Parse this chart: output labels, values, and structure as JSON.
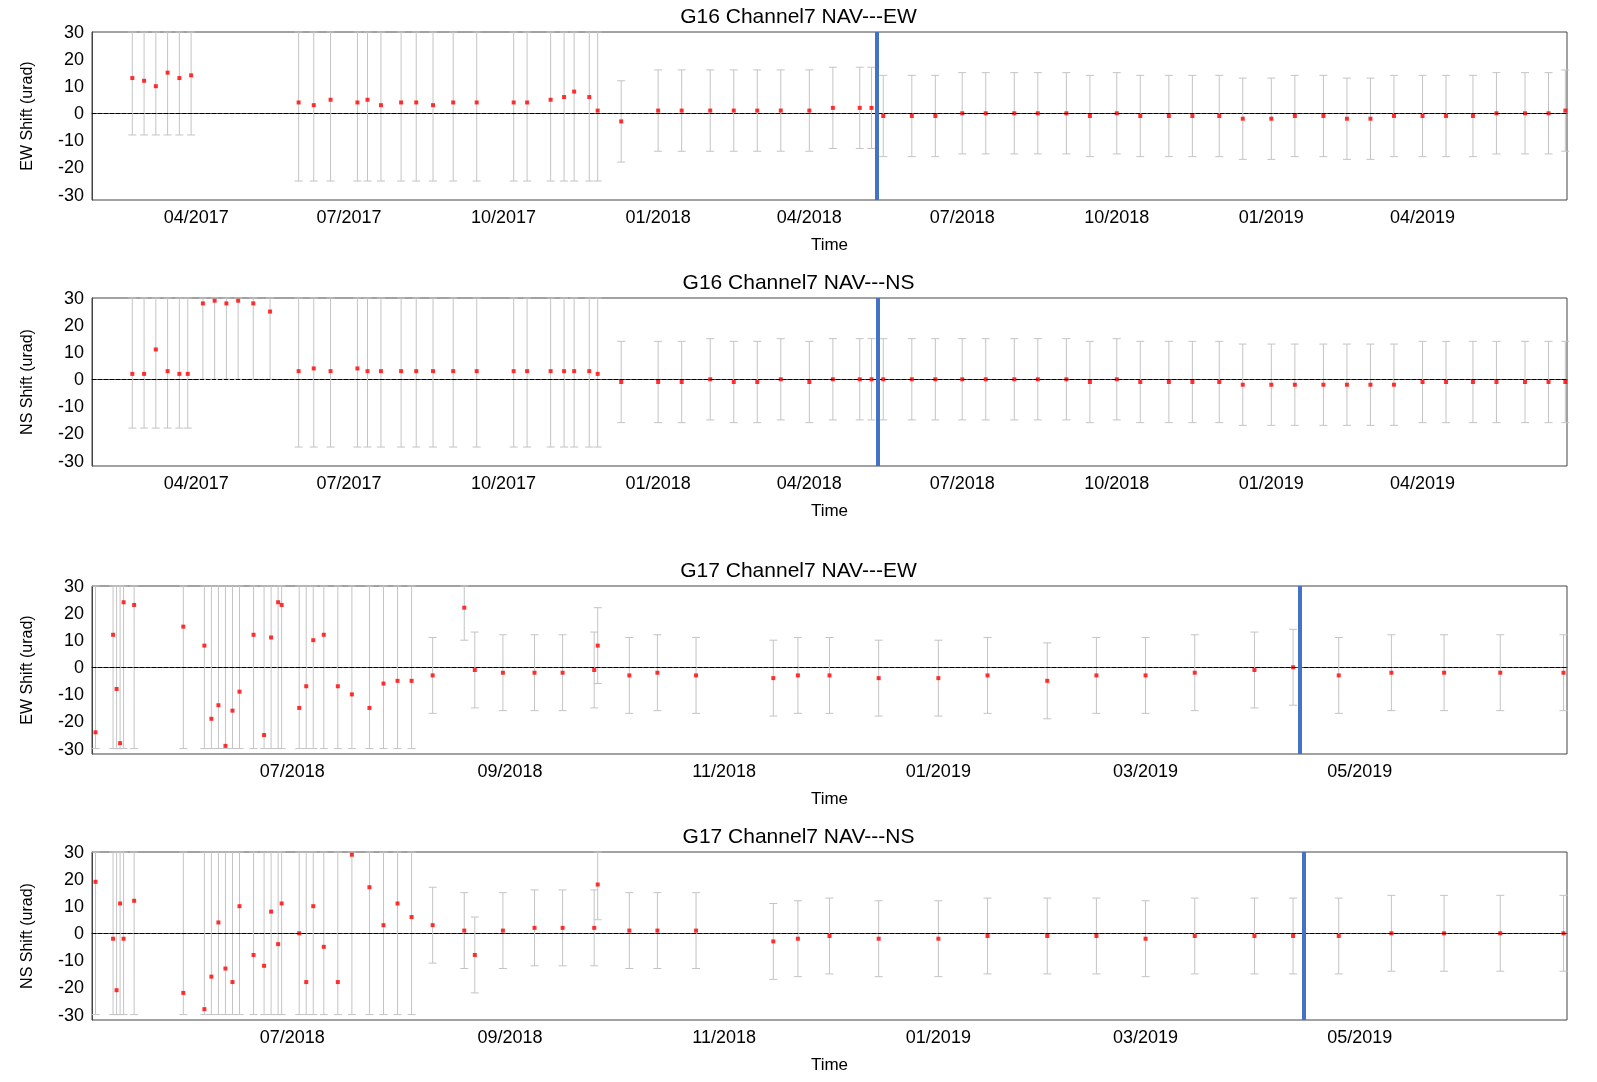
{
  "chart_data": [
    {
      "type": "scatter",
      "title": "G16 Channel7 NAV---EW",
      "xlabel": "Time",
      "ylabel": "EW Shift (urad)",
      "marker": "square",
      "grid": false,
      "xlim": [
        "2017-01-29",
        "2019-06-26"
      ],
      "xticks": [
        {
          "value": "2017-04-01",
          "label": "04/2017"
        },
        {
          "value": "2017-07-01",
          "label": "07/2017"
        },
        {
          "value": "2017-10-01",
          "label": "10/2017"
        },
        {
          "value": "2018-01-01",
          "label": "01/2018"
        },
        {
          "value": "2018-04-01",
          "label": "04/2018"
        },
        {
          "value": "2018-07-01",
          "label": "07/2018"
        },
        {
          "value": "2018-10-01",
          "label": "10/2018"
        },
        {
          "value": "2019-01-01",
          "label": "01/2019"
        },
        {
          "value": "2019-04-01",
          "label": "04/2019"
        }
      ],
      "ylim": [
        -32,
        30
      ],
      "yticks": [
        -30,
        -20,
        -10,
        0,
        10,
        20,
        30
      ],
      "ref_lines": [
        {
          "axis": "y",
          "value": 0,
          "color": "#000000",
          "line_style": "dashed"
        },
        {
          "axis": "x",
          "value": "2018-05-11",
          "color": "#4472c4"
        }
      ],
      "series": [
        {
          "color": "#ff0000",
          "x": [
            "2017-02-22",
            "2017-03-01",
            "2017-03-08",
            "2017-03-15",
            "2017-03-22",
            "2017-03-29",
            "2017-06-01",
            "2017-06-10",
            "2017-06-20",
            "2017-07-06",
            "2017-07-12",
            "2017-07-20",
            "2017-08-01",
            "2017-08-10",
            "2017-08-20",
            "2017-09-01",
            "2017-09-15",
            "2017-10-07",
            "2017-10-15",
            "2017-10-29",
            "2017-11-06",
            "2017-11-12",
            "2017-11-21",
            "2017-11-26",
            "2017-12-10",
            "2018-01-01",
            "2018-01-15",
            "2018-02-01",
            "2018-02-15",
            "2018-03-01",
            "2018-03-15",
            "2018-04-01",
            "2018-04-15",
            "2018-05-01",
            "2018-05-08",
            "2018-05-15",
            "2018-06-01",
            "2018-06-15",
            "2018-07-01",
            "2018-07-15",
            "2018-08-01",
            "2018-08-15",
            "2018-09-01",
            "2018-09-15",
            "2018-10-01",
            "2018-10-15",
            "2018-11-01",
            "2018-11-15",
            "2018-12-01",
            "2018-12-15",
            "2019-01-01",
            "2019-01-15",
            "2019-02-01",
            "2019-02-15",
            "2019-03-01",
            "2019-03-15",
            "2019-04-01",
            "2019-04-15",
            "2019-05-01",
            "2019-05-15",
            "2019-06-01",
            "2019-06-15",
            "2019-06-25"
          ],
          "values": [
            13,
            12,
            10,
            15,
            13,
            14,
            4,
            3,
            5,
            4,
            5,
            3,
            4,
            4,
            3,
            4,
            4,
            4,
            4,
            5,
            6,
            8,
            6,
            1,
            -3,
            1,
            1,
            1,
            1,
            1,
            1,
            1,
            2,
            2,
            2,
            -1,
            -1,
            -1,
            0,
            0,
            0,
            0,
            0,
            -1,
            0,
            -1,
            -1,
            -1,
            -1,
            -2,
            -2,
            -1,
            -1,
            -2,
            -2,
            -1,
            -1,
            -1,
            -1,
            0,
            0,
            0,
            1
          ],
          "errors": [
            [
              -8,
              30
            ],
            [
              -8,
              30
            ],
            [
              -8,
              30
            ],
            [
              -8,
              30
            ],
            [
              -8,
              30
            ],
            [
              -8,
              30
            ],
            [
              -25,
              30
            ],
            [
              -25,
              30
            ],
            [
              -25,
              30
            ],
            [
              -25,
              30
            ],
            [
              -25,
              30
            ],
            [
              -25,
              30
            ],
            [
              -25,
              30
            ],
            [
              -25,
              30
            ],
            [
              -25,
              30
            ],
            [
              -25,
              30
            ],
            [
              -25,
              30
            ],
            [
              -25,
              30
            ],
            [
              -25,
              30
            ],
            [
              -25,
              30
            ],
            [
              -25,
              30
            ],
            [
              -25,
              30
            ],
            [
              -25,
              30
            ],
            [
              -25,
              30
            ],
            15,
            15,
            15,
            15,
            15,
            15,
            15,
            15,
            15,
            15,
            15,
            15,
            15,
            15,
            15,
            15,
            15,
            15,
            15,
            15,
            15,
            15,
            15,
            15,
            15,
            15,
            15,
            15,
            15,
            15,
            15,
            15,
            15,
            15,
            15,
            15,
            15,
            15,
            15
          ]
        }
      ]
    },
    {
      "type": "scatter",
      "title": "G16 Channel7 NAV---NS",
      "xlabel": "Time",
      "ylabel": "NS Shift (urad)",
      "marker": "square",
      "grid": false,
      "xlim": [
        "2017-01-29",
        "2019-06-26"
      ],
      "xticks": [
        {
          "value": "2017-04-01",
          "label": "04/2017"
        },
        {
          "value": "2017-07-01",
          "label": "07/2017"
        },
        {
          "value": "2017-10-01",
          "label": "10/2017"
        },
        {
          "value": "2018-01-01",
          "label": "01/2018"
        },
        {
          "value": "2018-04-01",
          "label": "04/2018"
        },
        {
          "value": "2018-07-01",
          "label": "07/2018"
        },
        {
          "value": "2018-10-01",
          "label": "10/2018"
        },
        {
          "value": "2019-01-01",
          "label": "01/2019"
        },
        {
          "value": "2019-04-01",
          "label": "04/2019"
        }
      ],
      "ylim": [
        -32,
        30
      ],
      "yticks": [
        -30,
        -20,
        -10,
        0,
        10,
        20,
        30
      ],
      "ref_lines": [
        {
          "axis": "y",
          "value": 0,
          "color": "#000000",
          "line_style": "dashed"
        },
        {
          "axis": "x",
          "value": "2018-05-12",
          "color": "#4472c4"
        }
      ],
      "series": [
        {
          "color": "#ff0000",
          "x": [
            "2017-02-22",
            "2017-03-01",
            "2017-03-08",
            "2017-03-15",
            "2017-03-22",
            "2017-03-27",
            "2017-04-05",
            "2017-04-12",
            "2017-04-19",
            "2017-04-26",
            "2017-05-05",
            "2017-05-15",
            "2017-06-01",
            "2017-06-10",
            "2017-06-20",
            "2017-07-06",
            "2017-07-12",
            "2017-07-20",
            "2017-08-01",
            "2017-08-10",
            "2017-08-20",
            "2017-09-01",
            "2017-09-15",
            "2017-10-07",
            "2017-10-15",
            "2017-10-29",
            "2017-11-06",
            "2017-11-12",
            "2017-11-21",
            "2017-11-26",
            "2017-12-10",
            "2018-01-01",
            "2018-01-15",
            "2018-02-01",
            "2018-02-15",
            "2018-03-01",
            "2018-03-15",
            "2018-04-01",
            "2018-04-15",
            "2018-05-01",
            "2018-05-08",
            "2018-05-15",
            "2018-06-01",
            "2018-06-15",
            "2018-07-01",
            "2018-07-15",
            "2018-08-01",
            "2018-08-15",
            "2018-09-01",
            "2018-09-15",
            "2018-10-01",
            "2018-10-15",
            "2018-11-01",
            "2018-11-15",
            "2018-12-01",
            "2018-12-15",
            "2019-01-01",
            "2019-01-15",
            "2019-02-01",
            "2019-02-15",
            "2019-03-01",
            "2019-03-15",
            "2019-04-01",
            "2019-04-15",
            "2019-05-01",
            "2019-05-15",
            "2019-06-01",
            "2019-06-15",
            "2019-06-25"
          ],
          "values": [
            2,
            2,
            11,
            3,
            2,
            2,
            28,
            29,
            28,
            29,
            28,
            25,
            3,
            4,
            3,
            4,
            3,
            3,
            3,
            3,
            3,
            3,
            3,
            3,
            3,
            3,
            3,
            3,
            3,
            2,
            -1,
            -1,
            -1,
            0,
            -1,
            -1,
            0,
            -1,
            0,
            0,
            0,
            0,
            0,
            0,
            0,
            0,
            0,
            0,
            0,
            -1,
            0,
            -1,
            -1,
            -1,
            -1,
            -2,
            -2,
            -2,
            -2,
            -2,
            -2,
            -2,
            -1,
            -1,
            -1,
            -1,
            -1,
            -1,
            -1
          ],
          "errors": [
            [
              -18,
              30
            ],
            [
              -18,
              30
            ],
            [
              -18,
              30
            ],
            [
              -18,
              30
            ],
            [
              -18,
              30
            ],
            [
              -18,
              30
            ],
            [
              0,
              30
            ],
            [
              0,
              30
            ],
            [
              0,
              30
            ],
            [
              0,
              30
            ],
            [
              0,
              30
            ],
            [
              0,
              30
            ],
            [
              -25,
              30
            ],
            [
              -25,
              30
            ],
            [
              -25,
              30
            ],
            [
              -25,
              30
            ],
            [
              -25,
              30
            ],
            [
              -25,
              30
            ],
            [
              -25,
              30
            ],
            [
              -25,
              30
            ],
            [
              -25,
              30
            ],
            [
              -25,
              30
            ],
            [
              -25,
              30
            ],
            [
              -25,
              30
            ],
            [
              -25,
              30
            ],
            [
              -25,
              30
            ],
            [
              -25,
              30
            ],
            [
              -25,
              30
            ],
            [
              -25,
              30
            ],
            [
              -25,
              30
            ],
            15,
            15,
            15,
            15,
            15,
            15,
            15,
            15,
            15,
            15,
            15,
            15,
            15,
            15,
            15,
            15,
            15,
            15,
            15,
            15,
            15,
            15,
            15,
            15,
            15,
            15,
            15,
            15,
            15,
            15,
            15,
            15,
            15,
            15,
            15,
            15,
            15,
            15,
            15
          ]
        }
      ]
    },
    {
      "type": "scatter",
      "title": "G17 Channel7 NAV---EW",
      "xlabel": "Time",
      "ylabel": "EW Shift (urad)",
      "marker": "square",
      "grid": false,
      "xlim": [
        "2018-05-05",
        "2019-06-29"
      ],
      "xticks": [
        {
          "value": "2018-07-01",
          "label": "07/2018"
        },
        {
          "value": "2018-09-01",
          "label": "09/2018"
        },
        {
          "value": "2018-11-01",
          "label": "11/2018"
        },
        {
          "value": "2019-01-01",
          "label": "01/2019"
        },
        {
          "value": "2019-03-01",
          "label": "03/2019"
        },
        {
          "value": "2019-05-01",
          "label": "05/2019"
        }
      ],
      "ylim": [
        -32,
        30
      ],
      "yticks": [
        -30,
        -20,
        -10,
        0,
        10,
        20,
        30
      ],
      "ref_lines": [
        {
          "axis": "y",
          "value": 0,
          "color": "#000000",
          "line_style": "dashed"
        },
        {
          "axis": "x",
          "value": "2019-04-14",
          "color": "#4472c4"
        }
      ],
      "series": [
        {
          "color": "#ff0000",
          "x": [
            "2018-05-06",
            "2018-05-11",
            "2018-05-12",
            "2018-05-13",
            "2018-05-14",
            "2018-05-17",
            "2018-05-31",
            "2018-06-06",
            "2018-06-08",
            "2018-06-10",
            "2018-06-12",
            "2018-06-14",
            "2018-06-16",
            "2018-06-20",
            "2018-06-23",
            "2018-06-25",
            "2018-06-27",
            "2018-06-28",
            "2018-07-03",
            "2018-07-05",
            "2018-07-07",
            "2018-07-10",
            "2018-07-14",
            "2018-07-18",
            "2018-07-23",
            "2018-07-27",
            "2018-07-31",
            "2018-08-04",
            "2018-08-10",
            "2018-08-19",
            "2018-08-22",
            "2018-08-30",
            "2018-09-08",
            "2018-09-16",
            "2018-09-25",
            "2018-09-26",
            "2018-10-05",
            "2018-10-13",
            "2018-10-24",
            "2018-11-15",
            "2018-11-22",
            "2018-12-01",
            "2018-12-15",
            "2019-01-01",
            "2019-01-15",
            "2019-02-01",
            "2019-02-15",
            "2019-03-01",
            "2019-03-15",
            "2019-04-01",
            "2019-04-12",
            "2019-04-25",
            "2019-05-10",
            "2019-05-25",
            "2019-06-10",
            "2019-06-28"
          ],
          "values": [
            -24,
            12,
            -8,
            -28,
            24,
            23,
            15,
            8,
            -19,
            -14,
            -29,
            -16,
            -9,
            12,
            -25,
            11,
            24,
            23,
            -15,
            -7,
            10,
            12,
            -7,
            -10,
            -15,
            -6,
            -5,
            -5,
            -3,
            22,
            -1,
            -2,
            -2,
            -2,
            -1,
            8,
            -3,
            -2,
            -3,
            -4,
            -3,
            -3,
            -4,
            -4,
            -3,
            -5,
            -3,
            -3,
            -2,
            -1,
            0,
            -3,
            -2,
            -2,
            -2,
            -2
          ],
          "errors": [
            [
              -30,
              30
            ],
            [
              -30,
              30
            ],
            [
              -30,
              30
            ],
            [
              -30,
              30
            ],
            [
              -30,
              30
            ],
            [
              -30,
              30
            ],
            [
              -30,
              30
            ],
            [
              -30,
              30
            ],
            [
              -30,
              30
            ],
            [
              -30,
              30
            ],
            [
              -30,
              30
            ],
            [
              -30,
              30
            ],
            [
              -30,
              30
            ],
            [
              -30,
              30
            ],
            [
              -30,
              30
            ],
            [
              -30,
              30
            ],
            [
              -30,
              30
            ],
            [
              -30,
              30
            ],
            [
              -30,
              30
            ],
            [
              -30,
              30
            ],
            [
              -30,
              30
            ],
            [
              -30,
              30
            ],
            [
              -30,
              30
            ],
            [
              -30,
              30
            ],
            [
              -30,
              30
            ],
            [
              -30,
              30
            ],
            [
              -30,
              30
            ],
            [
              -30,
              30
            ],
            14,
            [
              10,
              30
            ],
            14,
            14,
            14,
            14,
            14,
            14,
            14,
            14,
            14,
            14,
            14,
            14,
            14,
            14,
            14,
            14,
            14,
            14,
            14,
            14,
            14,
            14,
            14,
            14,
            14,
            14
          ]
        }
      ]
    },
    {
      "type": "scatter",
      "title": "G17 Channel7 NAV---NS",
      "xlabel": "Time",
      "ylabel": "NS Shift (urad)",
      "marker": "square",
      "grid": false,
      "xlim": [
        "2018-05-05",
        "2019-06-29"
      ],
      "xticks": [
        {
          "value": "2018-07-01",
          "label": "07/2018"
        },
        {
          "value": "2018-09-01",
          "label": "09/2018"
        },
        {
          "value": "2018-11-01",
          "label": "11/2018"
        },
        {
          "value": "2019-01-01",
          "label": "01/2019"
        },
        {
          "value": "2019-03-01",
          "label": "03/2019"
        },
        {
          "value": "2019-05-01",
          "label": "05/2019"
        }
      ],
      "ylim": [
        -32,
        30
      ],
      "yticks": [
        -30,
        -20,
        -10,
        0,
        10,
        20,
        30
      ],
      "ref_lines": [
        {
          "axis": "y",
          "value": 0,
          "color": "#000000",
          "line_style": "dashed"
        },
        {
          "axis": "x",
          "value": "2019-04-15",
          "color": "#4472c4"
        }
      ],
      "series": [
        {
          "color": "#ff0000",
          "x": [
            "2018-05-06",
            "2018-05-11",
            "2018-05-12",
            "2018-05-13",
            "2018-05-14",
            "2018-05-17",
            "2018-05-31",
            "2018-06-06",
            "2018-06-08",
            "2018-06-10",
            "2018-06-12",
            "2018-06-14",
            "2018-06-16",
            "2018-06-20",
            "2018-06-23",
            "2018-06-25",
            "2018-06-27",
            "2018-06-28",
            "2018-07-03",
            "2018-07-05",
            "2018-07-07",
            "2018-07-10",
            "2018-07-14",
            "2018-07-18",
            "2018-07-23",
            "2018-07-27",
            "2018-07-31",
            "2018-08-04",
            "2018-08-10",
            "2018-08-19",
            "2018-08-22",
            "2018-08-30",
            "2018-09-08",
            "2018-09-16",
            "2018-09-25",
            "2018-09-26",
            "2018-10-05",
            "2018-10-13",
            "2018-10-24",
            "2018-11-15",
            "2018-11-22",
            "2018-12-01",
            "2018-12-15",
            "2019-01-01",
            "2019-01-15",
            "2019-02-01",
            "2019-02-15",
            "2019-03-01",
            "2019-03-15",
            "2019-04-01",
            "2019-04-12",
            "2019-04-25",
            "2019-05-10",
            "2019-05-25",
            "2019-06-10",
            "2019-06-28"
          ],
          "values": [
            19,
            -2,
            -21,
            11,
            -2,
            12,
            -22,
            -28,
            -16,
            4,
            -13,
            -18,
            10,
            -8,
            -12,
            8,
            -4,
            11,
            0,
            -18,
            10,
            -5,
            -18,
            29,
            17,
            3,
            11,
            6,
            3,
            1,
            -8,
            1,
            2,
            2,
            2,
            18,
            1,
            1,
            1,
            -3,
            -2,
            -1,
            -2,
            -2,
            -1,
            -1,
            -1,
            -2,
            -1,
            -1,
            -1,
            -1,
            0,
            0,
            0,
            0
          ],
          "errors": [
            [
              -30,
              30
            ],
            [
              -30,
              30
            ],
            [
              -30,
              30
            ],
            [
              -30,
              30
            ],
            [
              -30,
              30
            ],
            [
              -30,
              30
            ],
            [
              -30,
              30
            ],
            [
              -30,
              30
            ],
            [
              -30,
              30
            ],
            [
              -30,
              30
            ],
            [
              -30,
              30
            ],
            [
              -30,
              30
            ],
            [
              -30,
              30
            ],
            [
              -30,
              30
            ],
            [
              -30,
              30
            ],
            [
              -30,
              30
            ],
            [
              -30,
              30
            ],
            [
              -30,
              30
            ],
            [
              -30,
              30
            ],
            [
              -30,
              30
            ],
            [
              -30,
              30
            ],
            [
              -30,
              30
            ],
            [
              -30,
              30
            ],
            [
              -30,
              30
            ],
            [
              -30,
              30
            ],
            [
              -30,
              30
            ],
            [
              -30,
              30
            ],
            [
              -30,
              30
            ],
            14,
            14,
            14,
            14,
            14,
            14,
            14,
            [
              5,
              30
            ],
            14,
            14,
            14,
            14,
            14,
            14,
            14,
            14,
            14,
            14,
            14,
            14,
            14,
            14,
            14,
            14,
            14,
            14,
            14,
            14
          ]
        }
      ]
    }
  ]
}
